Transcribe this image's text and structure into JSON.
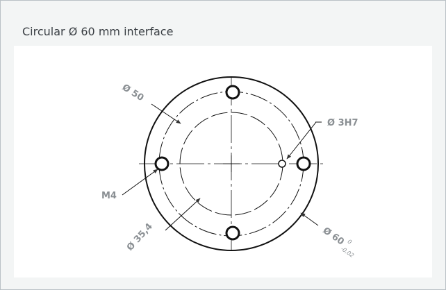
{
  "header": {
    "title": "Circular Ø 60 mm interface"
  },
  "labels": {
    "d50": "Ø 50",
    "d3h7": "Ø 3H7",
    "m4": "M4",
    "d35": "Ø 35,4",
    "d60": "Ø 60",
    "d60_upper": "0",
    "d60_lower": "-0,02"
  }
}
